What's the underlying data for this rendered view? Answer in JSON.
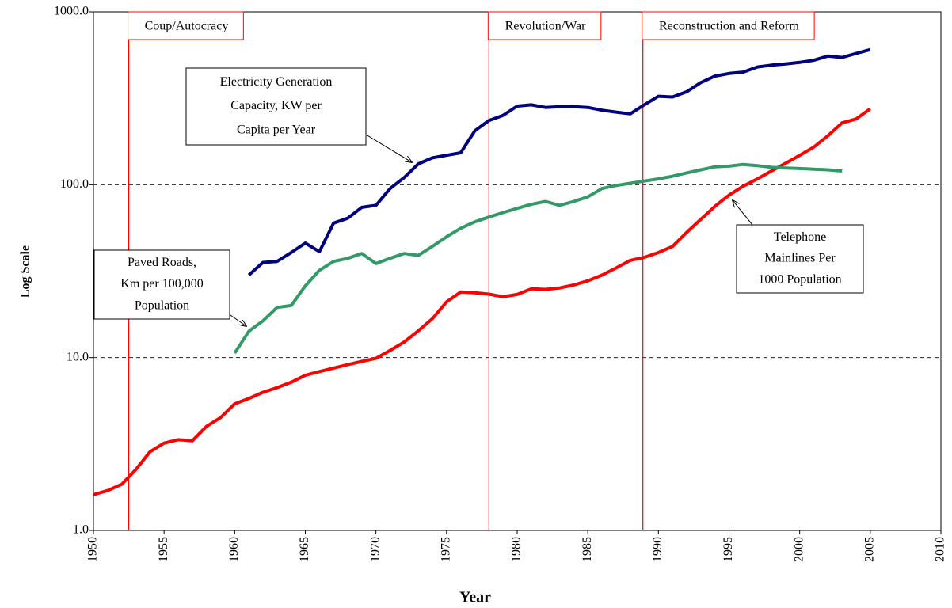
{
  "chart_data": {
    "type": "line",
    "y_axis_label": "Log Scale",
    "x_axis_label": "Year",
    "log_scale_y": true,
    "grid": true,
    "xlim": [
      1950,
      2010
    ],
    "xticks": [
      1950,
      1955,
      1960,
      1965,
      1970,
      1975,
      1980,
      1985,
      1990,
      1995,
      2000,
      2005,
      2010
    ],
    "ylim": [
      1,
      1000
    ],
    "yticks": [
      {
        "value": 1,
        "label": "1.0"
      },
      {
        "value": 10,
        "label": "10.0"
      },
      {
        "value": 100,
        "label": "100.0"
      },
      {
        "value": 1000,
        "label": "1000.0"
      }
    ],
    "x": [
      1950,
      1951,
      1952,
      1953,
      1954,
      1955,
      1956,
      1957,
      1958,
      1959,
      1960,
      1961,
      1962,
      1963,
      1964,
      1965,
      1966,
      1967,
      1968,
      1969,
      1970,
      1971,
      1972,
      1973,
      1974,
      1975,
      1976,
      1977,
      1978,
      1979,
      1980,
      1981,
      1982,
      1983,
      1984,
      1985,
      1986,
      1987,
      1988,
      1989,
      1990,
      1991,
      1992,
      1993,
      1994,
      1995,
      1996,
      1997,
      1998,
      1999,
      2000,
      2001,
      2002,
      2003,
      2004,
      2005
    ],
    "series": [
      {
        "name": "Telephone Mainlines Per 1000 Population",
        "color": "#ff0000",
        "values": [
          1.61,
          1.7,
          1.85,
          2.25,
          2.85,
          3.2,
          3.35,
          3.3,
          4.0,
          4.5,
          5.4,
          5.8,
          6.3,
          6.7,
          7.2,
          7.9,
          8.3,
          8.7,
          9.1,
          9.5,
          9.9,
          11,
          12.3,
          14.3,
          16.8,
          21,
          24,
          23.7,
          23.3,
          22.5,
          23.2,
          25,
          24.8,
          25.3,
          26.3,
          27.8,
          30,
          33,
          36.5,
          38,
          40.5,
          44,
          53,
          63,
          75,
          87,
          98,
          108,
          120,
          133,
          148,
          165,
          192,
          228,
          240,
          275
        ]
      },
      {
        "name": "Paved Roads, Km per 100,000 Population",
        "color": "#339966",
        "values": [
          null,
          null,
          null,
          null,
          null,
          null,
          null,
          null,
          null,
          null,
          10.6,
          14.2,
          16.3,
          19.5,
          20,
          26,
          32,
          36,
          37.5,
          40,
          35,
          37.5,
          40,
          39,
          44,
          50,
          56,
          61,
          65,
          69,
          73,
          77,
          80,
          76,
          80,
          85,
          95,
          99,
          102,
          105,
          108,
          112,
          117,
          122,
          127,
          128,
          131,
          129,
          126,
          125,
          124,
          123,
          122,
          120,
          null,
          null
        ]
      },
      {
        "name": "Electricity Generation Capacity, KW per Capita per Year",
        "color": "#000080",
        "values": [
          null,
          null,
          null,
          null,
          null,
          null,
          null,
          null,
          null,
          null,
          null,
          30,
          35.5,
          36,
          40.5,
          46,
          41,
          60,
          64,
          74,
          76,
          95,
          110,
          132,
          143,
          148,
          153,
          205,
          235,
          252,
          285,
          290,
          280,
          283,
          283,
          280,
          270,
          263,
          257,
          290,
          325,
          322,
          345,
          390,
          425,
          440,
          448,
          480,
          492,
          500,
          510,
          525,
          555,
          545,
          575,
          605
        ]
      }
    ],
    "annotations": [
      {
        "lines": [
          "Telephone",
          "Mainlines Per",
          "1000 Population"
        ]
      },
      {
        "lines": [
          "Paved Roads,",
          "Km per 100,000",
          "Population"
        ]
      },
      {
        "lines": [
          "Electricity Generation",
          "Capacity, KW per",
          "Capita per Year"
        ]
      }
    ],
    "periods": [
      {
        "label": "Coup/Autocracy",
        "x": 1952.5
      },
      {
        "label": "Revolution/War",
        "x": 1978
      },
      {
        "label": "Reconstruction and Reform",
        "x": 1988.9
      }
    ],
    "period_color": "#ff0000"
  }
}
